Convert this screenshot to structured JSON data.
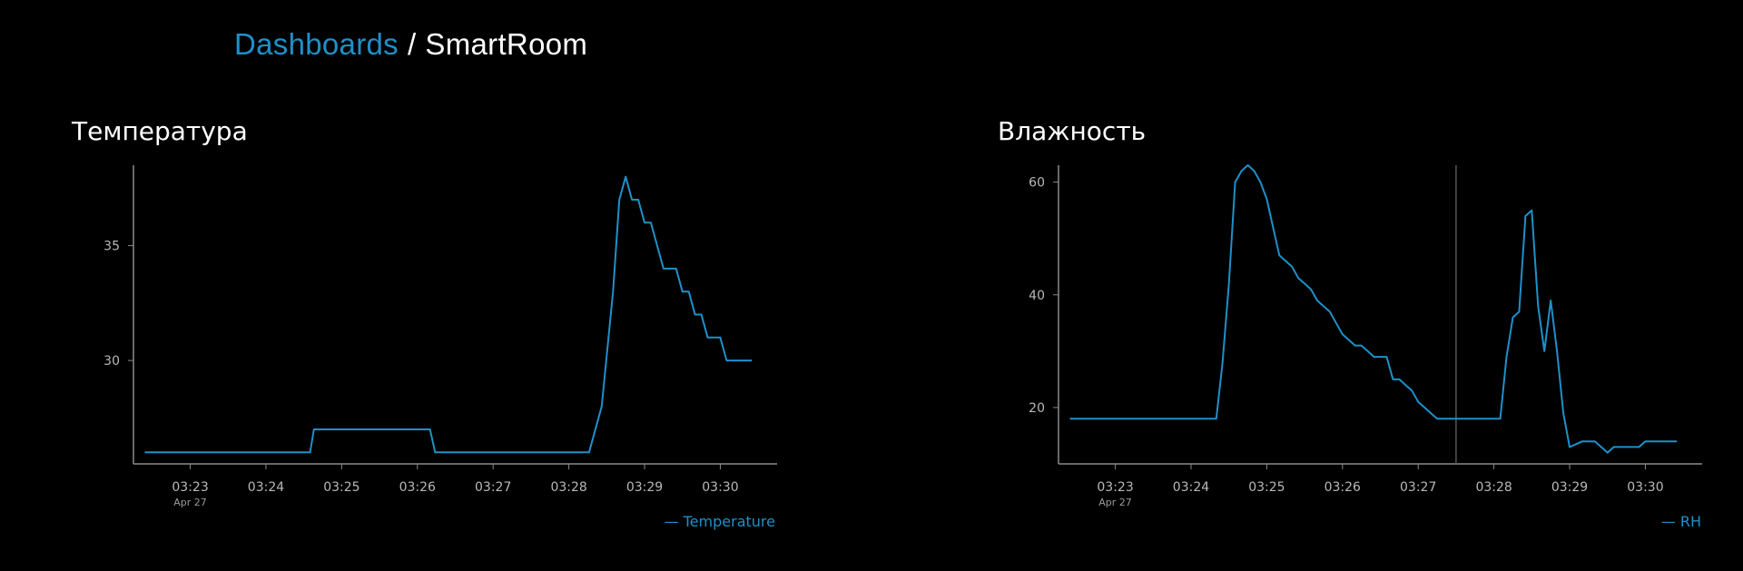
{
  "breadcrumb": {
    "root": "Dashboards",
    "separator": "/",
    "current": "SmartRoom"
  },
  "colors": {
    "series": "#1f90c8",
    "axis": "#8a8a8a",
    "text": "#ffffff",
    "cursor_line": "#555555"
  },
  "chart_data": [
    {
      "type": "line",
      "title": "Температура",
      "xlabel": "",
      "ylabel": "",
      "x_axis_type": "time",
      "x_tick_labels": [
        "03:23",
        "03:24",
        "03:25",
        "03:26",
        "03:27",
        "03:28",
        "03:29",
        "03:30"
      ],
      "x_date_label": "Apr 27",
      "y_tick_labels": [
        "30",
        "35"
      ],
      "y_ticks": [
        30,
        35
      ],
      "ylim": [
        25.5,
        38.5
      ],
      "xlim": [
        "03:22:15",
        "03:30:45"
      ],
      "legend": "— Temperature",
      "legend_position": "bottom-right",
      "grid": false,
      "series": [
        {
          "name": "Temperature",
          "points": [
            [
              "03:22:24",
              26
            ],
            [
              "03:22:40",
              26
            ],
            [
              "03:23:00",
              26
            ],
            [
              "03:23:30",
              26
            ],
            [
              "03:24:00",
              26
            ],
            [
              "03:24:20",
              26
            ],
            [
              "03:24:35",
              26
            ],
            [
              "03:24:38",
              27
            ],
            [
              "03:25:00",
              27
            ],
            [
              "03:25:30",
              27
            ],
            [
              "03:26:00",
              27
            ],
            [
              "03:26:10",
              27
            ],
            [
              "03:26:14",
              26
            ],
            [
              "03:26:40",
              26
            ],
            [
              "03:27:00",
              26
            ],
            [
              "03:27:30",
              26
            ],
            [
              "03:28:00",
              26
            ],
            [
              "03:28:16",
              26
            ],
            [
              "03:28:26",
              28
            ],
            [
              "03:28:35",
              33
            ],
            [
              "03:28:40",
              37
            ],
            [
              "03:28:45",
              38
            ],
            [
              "03:28:50",
              37
            ],
            [
              "03:28:55",
              37
            ],
            [
              "03:29:00",
              36
            ],
            [
              "03:29:05",
              36
            ],
            [
              "03:29:10",
              35
            ],
            [
              "03:29:15",
              34
            ],
            [
              "03:29:20",
              34
            ],
            [
              "03:29:25",
              34
            ],
            [
              "03:29:30",
              33
            ],
            [
              "03:29:35",
              33
            ],
            [
              "03:29:40",
              32
            ],
            [
              "03:29:45",
              32
            ],
            [
              "03:29:50",
              31
            ],
            [
              "03:29:55",
              31
            ],
            [
              "03:30:00",
              31
            ],
            [
              "03:30:05",
              30
            ],
            [
              "03:30:10",
              30
            ],
            [
              "03:30:15",
              30
            ],
            [
              "03:30:20",
              30
            ],
            [
              "03:30:25",
              30
            ]
          ]
        }
      ]
    },
    {
      "type": "line",
      "title": "Влажность",
      "xlabel": "",
      "ylabel": "",
      "x_axis_type": "time",
      "x_tick_labels": [
        "03:23",
        "03:24",
        "03:25",
        "03:26",
        "03:27",
        "03:28",
        "03:29",
        "03:30"
      ],
      "x_date_label": "Apr 27",
      "y_tick_labels": [
        "20",
        "40",
        "60"
      ],
      "y_ticks": [
        20,
        40,
        60
      ],
      "ylim": [
        10,
        63
      ],
      "xlim": [
        "03:22:15",
        "03:30:45"
      ],
      "cursor_time": "03:27:30",
      "legend": "— RH",
      "legend_position": "bottom-right",
      "grid": false,
      "series": [
        {
          "name": "RH",
          "points": [
            [
              "03:22:24",
              18
            ],
            [
              "03:22:40",
              18
            ],
            [
              "03:23:00",
              18
            ],
            [
              "03:23:30",
              18
            ],
            [
              "03:24:00",
              18
            ],
            [
              "03:24:15",
              18
            ],
            [
              "03:24:20",
              18
            ],
            [
              "03:24:25",
              28
            ],
            [
              "03:24:30",
              42
            ],
            [
              "03:24:35",
              60
            ],
            [
              "03:24:40",
              62
            ],
            [
              "03:24:45",
              63
            ],
            [
              "03:24:50",
              62
            ],
            [
              "03:24:55",
              60
            ],
            [
              "03:25:00",
              57
            ],
            [
              "03:25:05",
              52
            ],
            [
              "03:25:10",
              47
            ],
            [
              "03:25:15",
              46
            ],
            [
              "03:25:20",
              45
            ],
            [
              "03:25:25",
              43
            ],
            [
              "03:25:30",
              42
            ],
            [
              "03:25:35",
              41
            ],
            [
              "03:25:40",
              39
            ],
            [
              "03:25:45",
              38
            ],
            [
              "03:25:50",
              37
            ],
            [
              "03:25:55",
              35
            ],
            [
              "03:26:00",
              33
            ],
            [
              "03:26:05",
              32
            ],
            [
              "03:26:10",
              31
            ],
            [
              "03:26:15",
              31
            ],
            [
              "03:26:20",
              30
            ],
            [
              "03:26:25",
              29
            ],
            [
              "03:26:30",
              29
            ],
            [
              "03:26:35",
              29
            ],
            [
              "03:26:40",
              25
            ],
            [
              "03:26:45",
              25
            ],
            [
              "03:26:50",
              24
            ],
            [
              "03:26:55",
              23
            ],
            [
              "03:27:00",
              21
            ],
            [
              "03:27:05",
              20
            ],
            [
              "03:27:10",
              19
            ],
            [
              "03:27:15",
              18
            ],
            [
              "03:27:30",
              18
            ],
            [
              "03:27:45",
              18
            ],
            [
              "03:28:00",
              18
            ],
            [
              "03:28:05",
              18
            ],
            [
              "03:28:10",
              29
            ],
            [
              "03:28:15",
              36
            ],
            [
              "03:28:20",
              37
            ],
            [
              "03:28:25",
              54
            ],
            [
              "03:28:30",
              55
            ],
            [
              "03:28:35",
              38
            ],
            [
              "03:28:40",
              30
            ],
            [
              "03:28:45",
              39
            ],
            [
              "03:28:50",
              30
            ],
            [
              "03:28:55",
              19
            ],
            [
              "03:29:00",
              13
            ],
            [
              "03:29:05",
              13.5
            ],
            [
              "03:29:10",
              14
            ],
            [
              "03:29:15",
              14
            ],
            [
              "03:29:20",
              14
            ],
            [
              "03:29:25",
              13
            ],
            [
              "03:29:30",
              12
            ],
            [
              "03:29:35",
              13
            ],
            [
              "03:29:40",
              13
            ],
            [
              "03:29:45",
              13
            ],
            [
              "03:29:50",
              13
            ],
            [
              "03:29:55",
              13
            ],
            [
              "03:30:00",
              14
            ],
            [
              "03:30:05",
              14
            ],
            [
              "03:30:15",
              14
            ],
            [
              "03:30:20",
              14
            ],
            [
              "03:30:25",
              14
            ]
          ]
        }
      ]
    }
  ]
}
